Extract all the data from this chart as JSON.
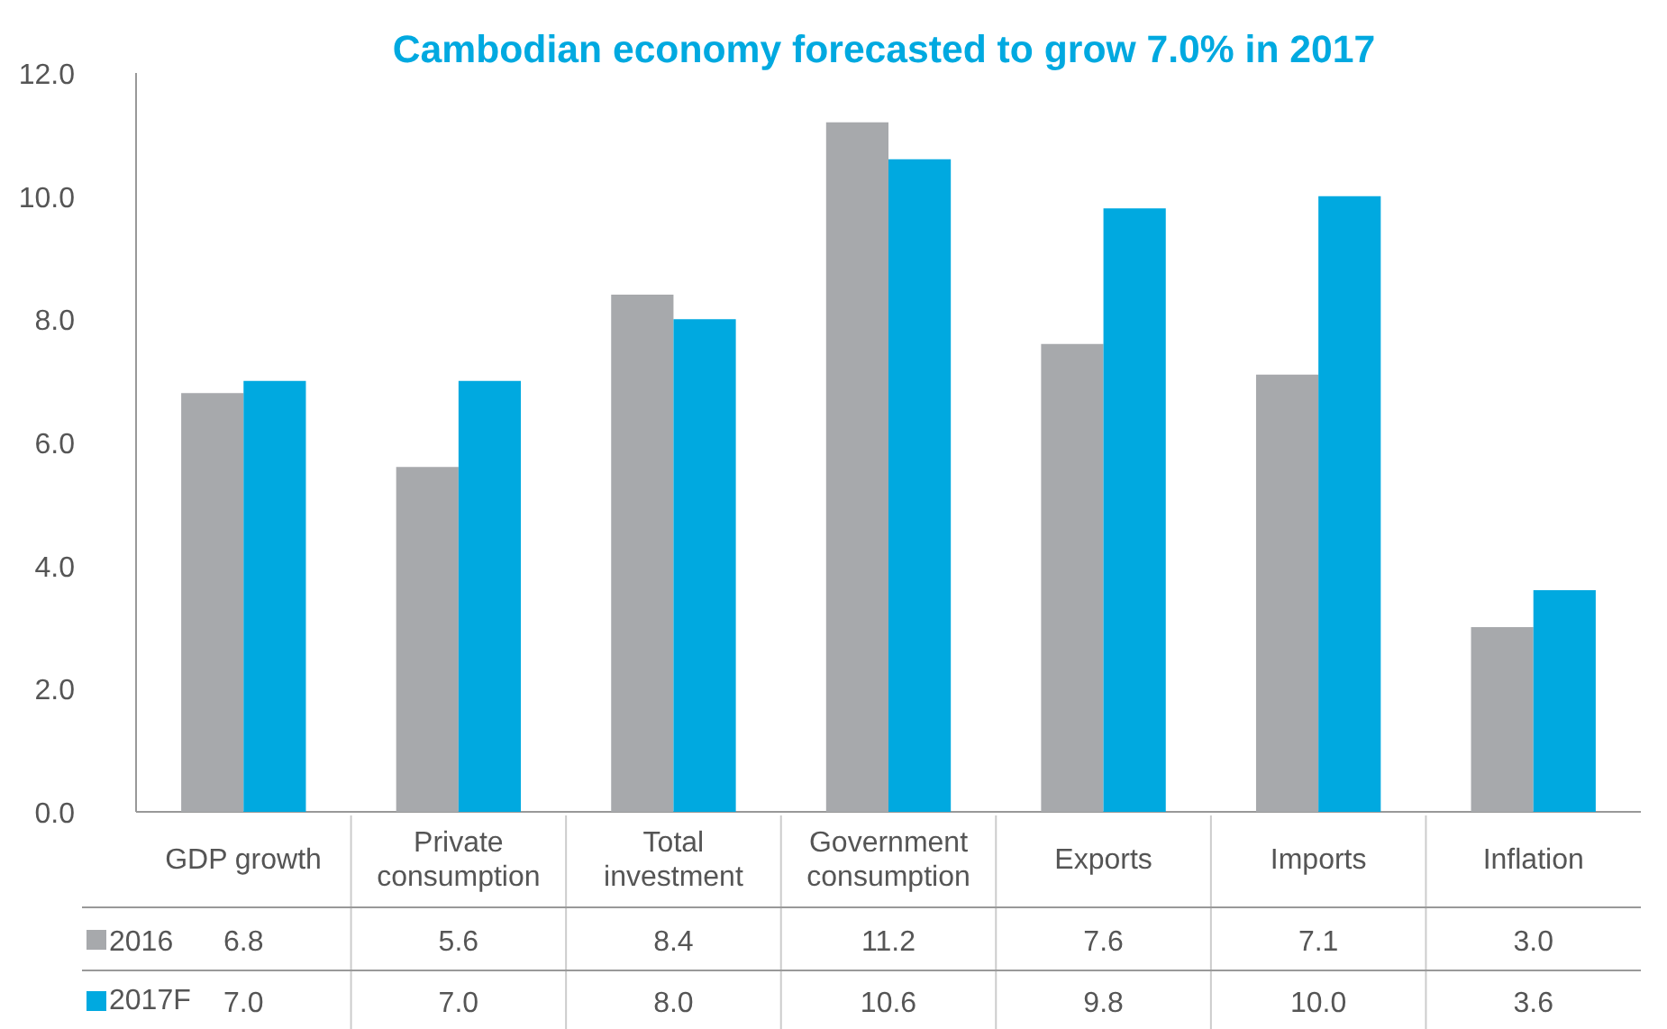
{
  "chart_data": {
    "type": "bar",
    "title": "Cambodian economy forecasted to grow 7.0% in 2017",
    "categories": [
      "GDP growth",
      "Private consumption",
      "Total investment",
      "Government consumption",
      "Exports",
      "Imports",
      "Inflation"
    ],
    "series": [
      {
        "name": "2016",
        "color": "#a7a9ac",
        "values": [
          6.8,
          5.6,
          8.4,
          11.2,
          7.6,
          7.1,
          3.0
        ],
        "value_labels": [
          "6.8",
          "5.6",
          "8.4",
          "11.2",
          "7.6",
          "7.1",
          "3.0"
        ]
      },
      {
        "name": "2017F",
        "color": "#00a9e0",
        "values": [
          7.0,
          7.0,
          8.0,
          10.6,
          9.8,
          10.0,
          3.6
        ],
        "value_labels": [
          "7.0",
          "7.0",
          "8.0",
          "10.6",
          "9.8",
          "10.0",
          "3.6"
        ]
      }
    ],
    "ylim": [
      0,
      12
    ],
    "yticks": [
      "0.0",
      "2.0",
      "4.0",
      "6.0",
      "8.0",
      "10.0",
      "12.0"
    ],
    "grid": false,
    "legend": "bottom"
  }
}
